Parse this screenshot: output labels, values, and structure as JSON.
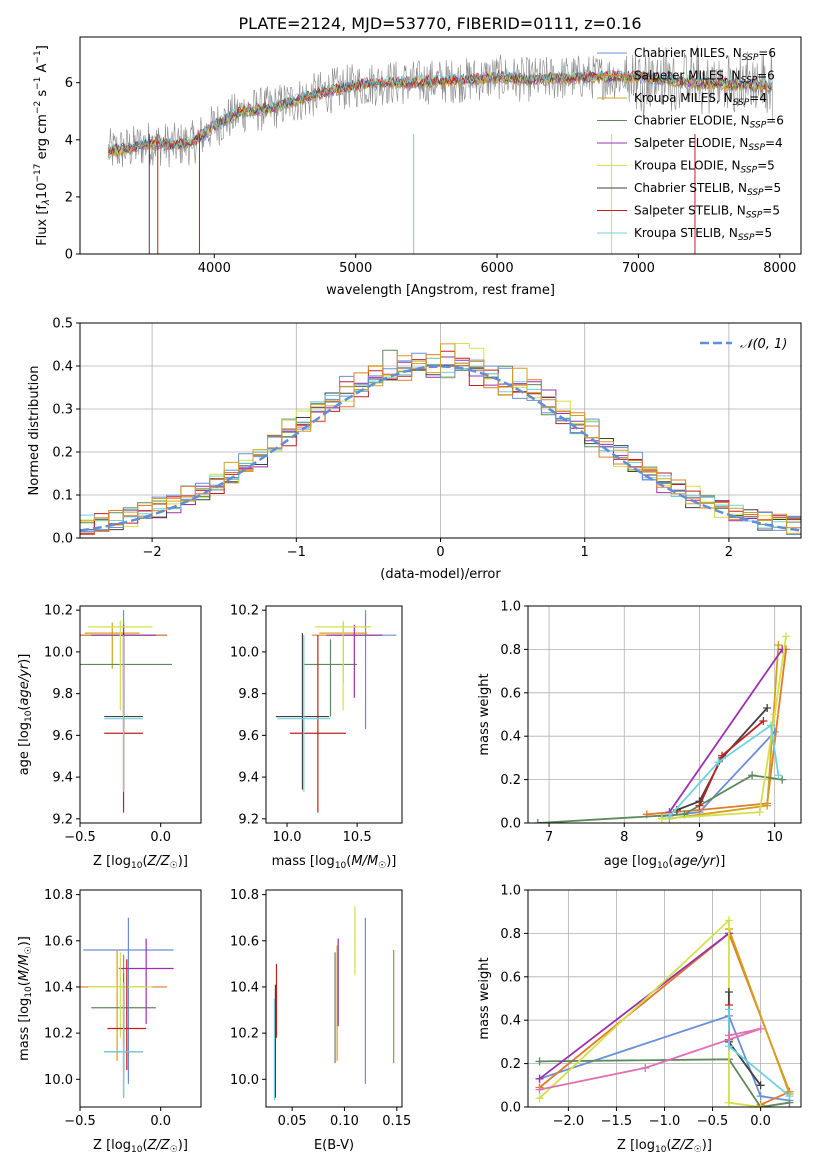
{
  "title": "PLATE=2124, MJD=53770, FIBERID=0111, z=0.16",
  "colors": [
    "#6a8fd8",
    "#e07b28",
    "#d4a020",
    "#5c8a5c",
    "#9a30b0",
    "#d4e04a",
    "#404040",
    "#c02020",
    "#70d0e0"
  ],
  "chart_data": [
    {
      "type": "line",
      "name": "spectrum",
      "xlabel": "wavelength [Angstrom, rest frame]",
      "ylabel": "Flux [f_λ 10^-17 erg cm^-2 s^-1 A^-1]",
      "xlim": [
        3050,
        8150
      ],
      "ylim": [
        0,
        7.6
      ],
      "xticks": [
        4000,
        5000,
        6000,
        7000,
        8000
      ],
      "yticks": [
        0,
        2,
        4,
        6
      ],
      "legend": "upper-right",
      "series": [
        {
          "name": "Chabrier MILES, N_SSP=6"
        },
        {
          "name": "Salpeter MILES, N_SSP=6"
        },
        {
          "name": "Kroupa MILES, N_SSP=4"
        },
        {
          "name": "Chabrier ELODIE, N_SSP=6"
        },
        {
          "name": "Salpeter ELODIE, N_SSP=4"
        },
        {
          "name": "Kroupa ELODIE, N_SSP=5"
        },
        {
          "name": "Chabrier STELIB, N_SSP=5"
        },
        {
          "name": "Salpeter STELIB, N_SSP=5"
        },
        {
          "name": "Kroupa STELIB, N_SSP=5"
        }
      ],
      "continuum": {
        "x": [
          3250,
          3400,
          3550,
          3700,
          3850,
          4000,
          4200,
          4400,
          4600,
          4800,
          5000,
          5200,
          5400,
          5600,
          5800,
          6000,
          6200,
          6400,
          6600,
          6800,
          7000,
          7200,
          7400,
          7600,
          7800,
          7950
        ],
        "y": [
          3.6,
          3.7,
          3.9,
          3.8,
          3.9,
          4.5,
          5.0,
          5.1,
          5.4,
          5.7,
          5.9,
          6.0,
          6.0,
          6.05,
          6.1,
          6.2,
          6.1,
          6.15,
          6.2,
          6.2,
          6.2,
          6.1,
          6.0,
          5.95,
          5.9,
          5.85
        ]
      }
    },
    {
      "type": "line",
      "name": "residuals",
      "xlabel": "(data-model)/error",
      "ylabel": "Normed distribution",
      "xlim": [
        -2.5,
        2.5
      ],
      "ylim": [
        0,
        0.5
      ],
      "xticks": [
        -2,
        -1,
        0,
        1,
        2
      ],
      "yticks": [
        0,
        0.1,
        0.2,
        0.3,
        0.4,
        0.5
      ],
      "legend": "upper-right",
      "reference": "𝒩(0, 1)",
      "bin_width": 0.1
    },
    {
      "type": "scatter",
      "name": "age-vs-Z",
      "xlabel": "Z [log10(Z/Z☉)]",
      "ylabel": "age [log10(age/yr)]",
      "xlim": [
        -0.5,
        0.25
      ],
      "ylim": [
        9.18,
        10.22
      ],
      "xticks": [
        -0.5,
        0.0
      ],
      "yticks": [
        9.2,
        9.4,
        9.6,
        9.8,
        10.0,
        10.2
      ],
      "points": [
        {
          "x": -0.23,
          "y": 10.08,
          "xerr": 0.27,
          "yerr": [
            0.45,
            0.12
          ]
        },
        {
          "x": -0.23,
          "y": 10.08,
          "xerr": 0.27,
          "yerr": [
            0.23,
            0.06
          ]
        },
        {
          "x": -0.3,
          "y": 10.09,
          "xerr": 0.17,
          "yerr": [
            0.17,
            0.05
          ]
        },
        {
          "x": -0.23,
          "y": 9.94,
          "xerr": 0.3,
          "yerr": [
            0.25,
            0.12
          ]
        },
        {
          "x": -0.23,
          "y": 10.08,
          "xerr": 0.2,
          "yerr": [
            0.3,
            0.05
          ]
        },
        {
          "x": -0.25,
          "y": 10.12,
          "xerr": 0.2,
          "yerr": [
            0.4,
            0.03
          ]
        },
        {
          "x": -0.23,
          "y": 9.69,
          "xerr": 0.12,
          "yerr": [
            0.35,
            0.4
          ]
        },
        {
          "x": -0.23,
          "y": 9.61,
          "xerr": 0.12,
          "yerr": [
            0.38,
            0.47
          ]
        },
        {
          "x": -0.23,
          "y": 9.68,
          "xerr": 0.12,
          "yerr": [
            0.35,
            0.4
          ]
        }
      ]
    },
    {
      "type": "scatter",
      "name": "age-vs-mass",
      "xlabel": "mass [log10(M/M☉)]",
      "ylabel": "",
      "xlim": [
        9.85,
        10.82
      ],
      "ylim": [
        9.18,
        10.22
      ],
      "xticks": [
        10.0,
        10.5
      ],
      "yticks": [
        9.2,
        9.4,
        9.6,
        9.8,
        10.0,
        10.2
      ],
      "points": [
        {
          "x": 10.56,
          "y": 10.08,
          "xerr": 0.22,
          "yerr": [
            0.45,
            0.12
          ]
        },
        {
          "x": 10.4,
          "y": 10.08,
          "xerr": 0.22,
          "yerr": [
            0.23,
            0.06
          ]
        },
        {
          "x": 10.4,
          "y": 10.09,
          "xerr": 0.17,
          "yerr": [
            0.17,
            0.05
          ]
        },
        {
          "x": 10.31,
          "y": 9.94,
          "xerr": 0.19,
          "yerr": [
            0.25,
            0.12
          ]
        },
        {
          "x": 10.48,
          "y": 10.08,
          "xerr": 0.2,
          "yerr": [
            0.3,
            0.05
          ]
        },
        {
          "x": 10.4,
          "y": 10.12,
          "xerr": 0.2,
          "yerr": [
            0.4,
            0.03
          ]
        },
        {
          "x": 10.11,
          "y": 9.69,
          "xerr": 0.19,
          "yerr": [
            0.35,
            0.4
          ]
        },
        {
          "x": 10.22,
          "y": 9.61,
          "xerr": 0.2,
          "yerr": [
            0.38,
            0.47
          ]
        },
        {
          "x": 10.12,
          "y": 9.68,
          "xerr": 0.19,
          "yerr": [
            0.35,
            0.4
          ]
        }
      ]
    },
    {
      "type": "line",
      "name": "weight-vs-age",
      "xlabel": "age [log10(age/yr)]",
      "ylabel": "mass weight",
      "xlim": [
        6.72,
        10.35
      ],
      "ylim": [
        0,
        1.0
      ],
      "xticks": [
        7,
        8,
        9,
        10
      ],
      "yticks": [
        0.0,
        0.2,
        0.4,
        0.6,
        0.8,
        1.0
      ],
      "series": [
        {
          "x": [
            8.5,
            9.0,
            10.0
          ],
          "y": [
            0.03,
            0.05,
            0.42
          ]
        },
        {
          "x": [
            8.3,
            9.0,
            9.9,
            10.15
          ],
          "y": [
            0.04,
            0.06,
            0.09,
            0.8
          ]
        },
        {
          "x": [
            8.6,
            9.9,
            10.05
          ],
          "y": [
            0.02,
            0.08,
            0.82
          ]
        },
        {
          "x": [
            6.85,
            8.8,
            9.7,
            10.1
          ],
          "y": [
            0.0,
            0.04,
            0.22,
            0.2
          ]
        },
        {
          "x": [
            8.6,
            10.1
          ],
          "y": [
            0.05,
            0.8
          ]
        },
        {
          "x": [
            8.5,
            9.8,
            10.0,
            10.15
          ],
          "y": [
            0.02,
            0.05,
            0.5,
            0.86
          ]
        },
        {
          "x": [
            8.7,
            9.0,
            9.3,
            9.9
          ],
          "y": [
            0.06,
            0.1,
            0.3,
            0.53
          ]
        },
        {
          "x": [
            9.0,
            9.3,
            9.85
          ],
          "y": [
            0.08,
            0.31,
            0.47
          ]
        },
        {
          "x": [
            8.6,
            9.25,
            9.95,
            10.05
          ],
          "y": [
            0.03,
            0.28,
            0.45,
            0.22
          ]
        }
      ]
    },
    {
      "type": "scatter",
      "name": "mass-vs-Z",
      "xlabel": "Z [log10(Z/Z☉)]",
      "ylabel": "mass [log10(M/M☉)]",
      "xlim": [
        -0.5,
        0.25
      ],
      "ylim": [
        9.88,
        10.82
      ],
      "xticks": [
        -0.5,
        0.0
      ],
      "yticks": [
        10.0,
        10.2,
        10.4,
        10.6,
        10.8
      ],
      "points": [
        {
          "x": -0.2,
          "y": 10.56,
          "xerr": 0.28,
          "yerr": [
            0.58,
            0.14
          ]
        },
        {
          "x": -0.23,
          "y": 10.4,
          "xerr": 0.27,
          "yerr": [
            0.25,
            0.14
          ]
        },
        {
          "x": -0.27,
          "y": 10.4,
          "xerr": 0.18,
          "yerr": [
            0.32,
            0.16
          ]
        },
        {
          "x": -0.23,
          "y": 10.31,
          "xerr": 0.2,
          "yerr": [
            0.28,
            0.15
          ]
        },
        {
          "x": -0.09,
          "y": 10.48,
          "xerr": 0.17,
          "yerr": [
            0.24,
            0.13
          ]
        },
        {
          "x": -0.25,
          "y": 10.4,
          "xerr": 0.2,
          "yerr": [
            0.22,
            0.15
          ]
        },
        {
          "x": -0.23,
          "y": 10.12,
          "xerr": 0.12,
          "yerr": [
            0.2,
            0.3
          ]
        },
        {
          "x": -0.21,
          "y": 10.22,
          "xerr": 0.12,
          "yerr": [
            0.18,
            0.3
          ]
        },
        {
          "x": -0.23,
          "y": 10.12,
          "xerr": 0.12,
          "yerr": [
            0.2,
            0.3
          ]
        }
      ]
    },
    {
      "type": "scatter",
      "name": "mass-vs-EBV",
      "xlabel": "E(B-V)",
      "ylabel": "",
      "xlim": [
        0.025,
        0.155
      ],
      "ylim": [
        9.88,
        10.82
      ],
      "xticks": [
        0.05,
        0.1,
        0.15
      ],
      "yticks": [
        10.0,
        10.2,
        10.4,
        10.6,
        10.8
      ],
      "points": [
        {
          "x": 0.12,
          "y": 10.4,
          "yerr": [
            0.42,
            0.3
          ]
        },
        {
          "x": 0.147,
          "y": 10.31,
          "yerr": [
            0.24,
            0.25
          ]
        },
        {
          "x": 0.093,
          "y": 10.38,
          "yerr": [
            0.3,
            0.2
          ]
        },
        {
          "x": 0.091,
          "y": 10.3,
          "yerr": [
            0.23,
            0.25
          ]
        },
        {
          "x": 0.094,
          "y": 10.45,
          "yerr": [
            0.22,
            0.16
          ]
        },
        {
          "x": 0.11,
          "y": 10.55,
          "yerr": [
            0.1,
            0.2
          ]
        },
        {
          "x": 0.034,
          "y": 10.22,
          "yerr": [
            0.3,
            0.19
          ]
        },
        {
          "x": 0.035,
          "y": 10.38,
          "yerr": [
            0.2,
            0.12
          ]
        },
        {
          "x": 0.033,
          "y": 10.15,
          "yerr": [
            0.24,
            0.2
          ]
        }
      ]
    },
    {
      "type": "line",
      "name": "weight-vs-Z",
      "xlabel": "Z [log10(Z/Z☉)]",
      "ylabel": "mass weight",
      "xlim": [
        -2.42,
        0.42
      ],
      "ylim": [
        0,
        1.0
      ],
      "xticks": [
        -2.0,
        -1.5,
        -1.0,
        -0.5,
        0.0
      ],
      "yticks": [
        0.0,
        0.2,
        0.4,
        0.6,
        0.8,
        1.0
      ],
      "series": [
        {
          "x": [
            -2.3,
            -0.33,
            0.0,
            0.3
          ],
          "y": [
            0.13,
            0.42,
            0.05,
            0.03
          ]
        },
        {
          "x": [
            -2.3,
            -0.33,
            0.3,
            0.0
          ],
          "y": [
            0.09,
            0.8,
            0.07,
            0.01
          ]
        },
        {
          "x": [
            -0.33,
            0.3
          ],
          "y": [
            0.82,
            0.06
          ]
        },
        {
          "x": [
            -2.3,
            -0.33,
            0.0,
            0.3
          ],
          "y": [
            0.21,
            0.22,
            0.0,
            0.02
          ]
        },
        {
          "x": [
            -2.3,
            -0.33
          ],
          "y": [
            0.13,
            0.8
          ]
        },
        {
          "x": [
            -2.3,
            -0.33,
            -0.33,
            0.0
          ],
          "y": [
            0.04,
            0.86,
            0.02,
            0.0
          ]
        },
        {
          "x": [
            -0.33,
            -0.33,
            0.0
          ],
          "y": [
            0.53,
            0.3,
            0.1
          ]
        },
        {
          "x": [
            -0.33,
            -0.33
          ],
          "y": [
            0.47,
            0.31
          ]
        },
        {
          "x": [
            -0.33,
            -0.33,
            0.3
          ],
          "y": [
            0.45,
            0.28,
            0.05
          ]
        },
        {
          "x": [
            -2.3,
            -1.2,
            0.0,
            -0.33
          ],
          "y": [
            0.08,
            0.18,
            0.36,
            0.33
          ]
        }
      ]
    }
  ]
}
